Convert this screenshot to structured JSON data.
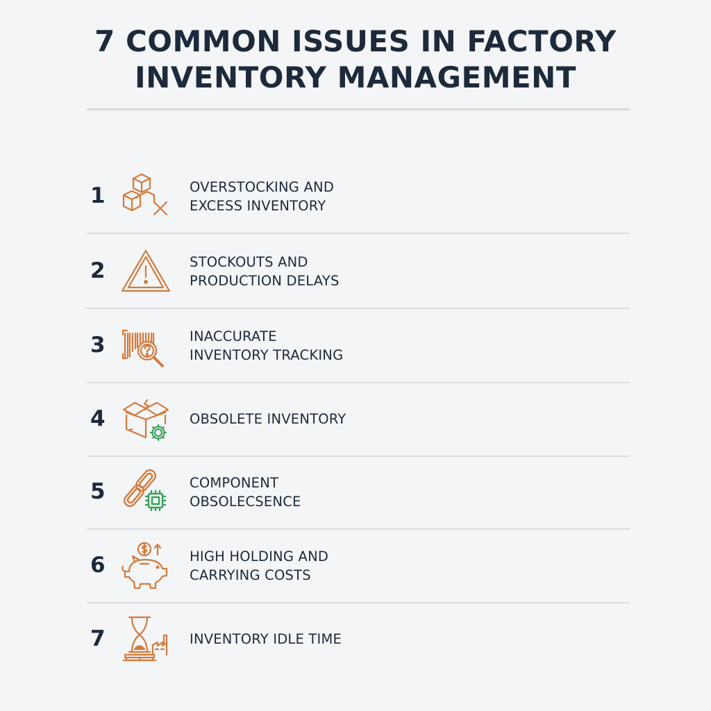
{
  "title": {
    "line1": "7 COMMON ISSUES IN FACTORY",
    "line2": "INVENTORY MANAGEMENT"
  },
  "colors": {
    "heading": "#1d2a3b",
    "accent_orange": "#d27a3c",
    "accent_green": "#3aa35a",
    "divider": "#d9dbde"
  },
  "items": [
    {
      "number": "1",
      "line1": "OVERSTOCKING AND",
      "line2": "EXCESS INVENTORY",
      "icon": "stacked-boxes-x-icon"
    },
    {
      "number": "2",
      "line1": "STOCKOUTS AND",
      "line2": "PRODUCTION DELAYS",
      "icon": "warning-triangle-icon"
    },
    {
      "number": "3",
      "line1": "INACCURATE",
      "line2": "INVENTORY TRACKING",
      "icon": "barcode-magnifier-icon"
    },
    {
      "number": "4",
      "line1": "OBSOLETE INVENTORY",
      "line2": "",
      "icon": "open-box-gear-icon"
    },
    {
      "number": "5",
      "line1": "COMPONENT",
      "line2": "OBSOLECSENCE",
      "icon": "chain-chip-icon"
    },
    {
      "number": "6",
      "line1": "HIGH HOLDING AND",
      "line2": "CARRYING COSTS",
      "icon": "piggy-bank-icon"
    },
    {
      "number": "7",
      "line1": "INVENTORY IDLE TIME",
      "line2": "",
      "icon": "hourglass-factory-icon"
    }
  ]
}
